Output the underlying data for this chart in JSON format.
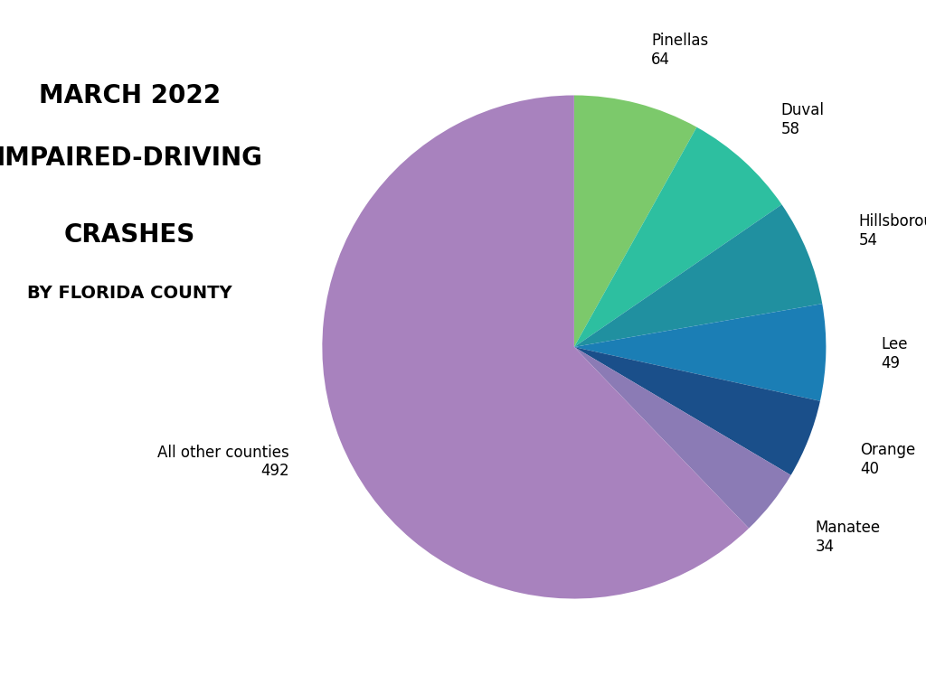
{
  "labels": [
    "Pinellas",
    "Duval",
    "Hillsborough",
    "Lee",
    "Orange",
    "Manatee",
    "All other counties"
  ],
  "values": [
    64,
    58,
    54,
    49,
    40,
    34,
    492
  ],
  "colors": [
    "#7CC96B",
    "#2DBFA0",
    "#2090A0",
    "#1B7EB5",
    "#1A4F8A",
    "#8B7BB5",
    "#A882BE"
  ],
  "title_line1": "MARCH 2022",
  "title_line2": "IMPAIRED-DRIVING",
  "title_line3": "CRASHES",
  "title_line4": "BY FLORIDA COUNTY",
  "background_color": "#FFFFFF",
  "label_fontsize": 12,
  "title_fontsize_large": 20,
  "title_fontsize_small": 14
}
